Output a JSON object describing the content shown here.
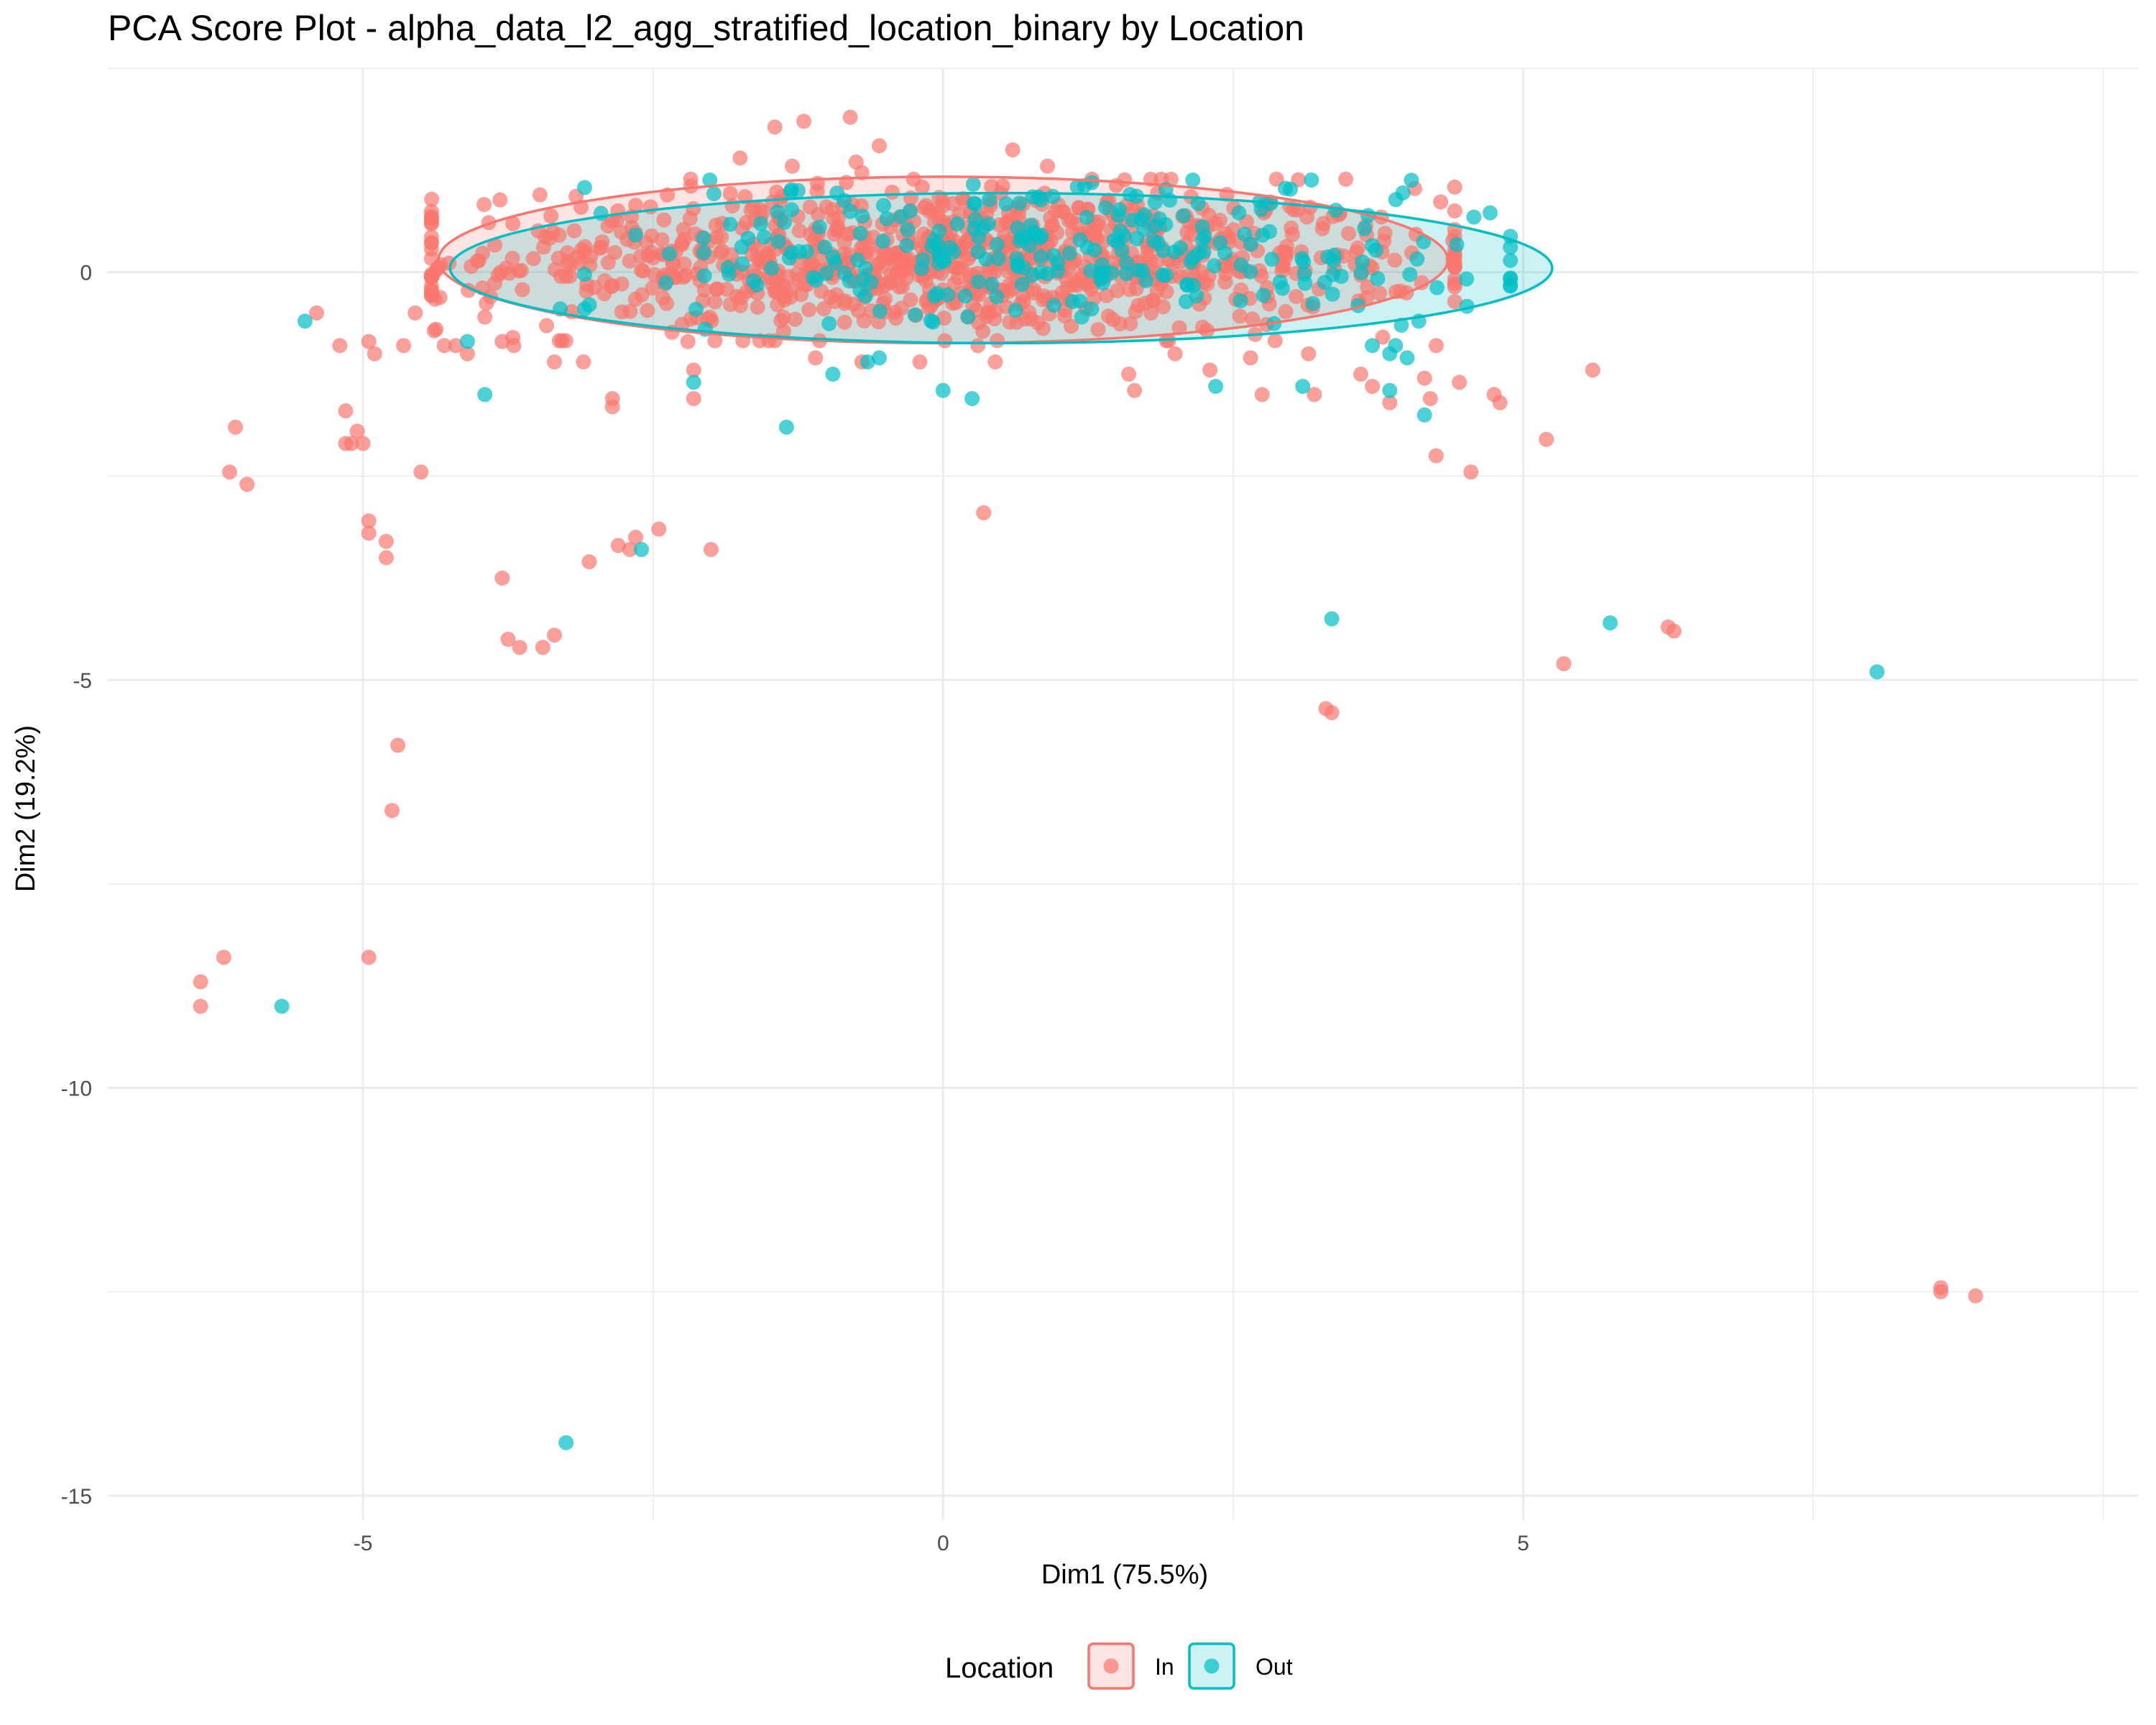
{
  "chart_data": {
    "type": "scatter",
    "title": "PCA Score Plot - alpha_data_l2_agg_stratified_location_binary by Location",
    "xlabel": "Dim1 (75.5%)",
    "ylabel": "Dim2 (19.2%)",
    "xlim": [
      -7.2,
      10.3
    ],
    "ylim": [
      -15.3,
      2.5
    ],
    "x_ticks": [
      -5,
      0,
      5
    ],
    "x_tick_labels": [
      "-5",
      "0",
      "5"
    ],
    "y_ticks": [
      -15,
      -10,
      -5,
      0
    ],
    "y_tick_labels": [
      "-15",
      "-10",
      "-5",
      "0"
    ],
    "grid": true,
    "legend": {
      "title": "Location",
      "position": "bottom",
      "entries": [
        {
          "label": "In",
          "color": "#F8766D"
        },
        {
          "label": "Out",
          "color": "#00BFC4"
        }
      ]
    },
    "series": [
      {
        "name": "In",
        "color": "#F8766D",
        "ellipse": {
          "cx": 0.0,
          "cy": 0.15,
          "rx": 4.35,
          "ry": 1.02
        },
        "cluster": {
          "n": 950,
          "seed": 12345,
          "cx": 0.0,
          "cy": 0.15,
          "sx": 2.1,
          "sy": 0.45
        },
        "points": [
          [
            -6.4,
            -8.7
          ],
          [
            -6.4,
            -9.0
          ],
          [
            -6.2,
            -8.4
          ],
          [
            -6.1,
            -1.9
          ],
          [
            -6.0,
            -2.6
          ],
          [
            -6.15,
            -2.45
          ],
          [
            -5.4,
            -0.5
          ],
          [
            -5.15,
            -1.7
          ],
          [
            -5.15,
            -2.1
          ],
          [
            -5.1,
            -2.1
          ],
          [
            -5.0,
            -2.1
          ],
          [
            -5.05,
            -1.95
          ],
          [
            -4.95,
            -3.05
          ],
          [
            -4.95,
            -3.2
          ],
          [
            -4.8,
            -3.3
          ],
          [
            -4.8,
            -3.5
          ],
          [
            -4.7,
            -5.8
          ],
          [
            -4.75,
            -6.6
          ],
          [
            -4.95,
            -8.4
          ],
          [
            -4.5,
            -2.45
          ],
          [
            -5.2,
            -0.9
          ],
          [
            -4.95,
            -0.85
          ],
          [
            -4.9,
            -1.0
          ],
          [
            -4.65,
            -0.9
          ],
          [
            -4.55,
            -0.5
          ],
          [
            -4.3,
            -0.9
          ],
          [
            -4.2,
            -0.9
          ],
          [
            -4.1,
            -1.0
          ],
          [
            -3.95,
            -0.55
          ],
          [
            -3.9,
            -0.3
          ],
          [
            -3.8,
            -3.75
          ],
          [
            -3.8,
            -0.85
          ],
          [
            -3.7,
            -0.9
          ],
          [
            -3.75,
            -4.5
          ],
          [
            -3.65,
            -4.6
          ],
          [
            -3.45,
            -4.6
          ],
          [
            -3.35,
            -4.45
          ],
          [
            -3.35,
            -1.1
          ],
          [
            -3.1,
            -1.1
          ],
          [
            -3.05,
            -3.55
          ],
          [
            -2.85,
            -1.65
          ],
          [
            -2.85,
            -1.55
          ],
          [
            -2.8,
            -3.35
          ],
          [
            -2.7,
            -3.4
          ],
          [
            -2.65,
            -3.25
          ],
          [
            -2.45,
            -3.15
          ],
          [
            -2.2,
            -0.85
          ],
          [
            -2.15,
            -1.2
          ],
          [
            -2.15,
            -1.55
          ],
          [
            -2.0,
            -3.4
          ],
          [
            -0.7,
            -1.1
          ],
          [
            -1.1,
            -1.05
          ],
          [
            -0.2,
            -1.1
          ],
          [
            0.3,
            -0.9
          ],
          [
            0.45,
            -1.1
          ],
          [
            0.35,
            -2.95
          ],
          [
            1.6,
            -1.25
          ],
          [
            1.65,
            -1.45
          ],
          [
            2.0,
            -1.0
          ],
          [
            2.3,
            -1.2
          ],
          [
            2.65,
            -1.05
          ],
          [
            2.75,
            -1.5
          ],
          [
            3.3,
            -5.35
          ],
          [
            3.35,
            -5.4
          ],
          [
            3.15,
            -1.0
          ],
          [
            3.2,
            -1.5
          ],
          [
            3.6,
            -1.25
          ],
          [
            3.7,
            -1.4
          ],
          [
            3.85,
            -1.6
          ],
          [
            4.25,
            -0.9
          ],
          [
            4.15,
            -1.3
          ],
          [
            4.2,
            -1.55
          ],
          [
            4.25,
            -2.25
          ],
          [
            4.45,
            -1.35
          ],
          [
            4.55,
            -2.45
          ],
          [
            4.75,
            -1.5
          ],
          [
            4.8,
            -1.6
          ],
          [
            5.2,
            -2.05
          ],
          [
            5.6,
            -1.2
          ],
          [
            5.35,
            -4.8
          ],
          [
            6.25,
            -4.35
          ],
          [
            6.3,
            -4.4
          ],
          [
            8.6,
            -12.45
          ],
          [
            8.6,
            -12.5
          ],
          [
            8.9,
            -12.55
          ],
          [
            -1.45,
            1.78
          ],
          [
            -1.2,
            1.85
          ],
          [
            -0.8,
            1.9
          ],
          [
            -0.55,
            1.55
          ],
          [
            -1.3,
            1.3
          ],
          [
            -1.75,
            1.4
          ],
          [
            0.6,
            1.5
          ],
          [
            0.9,
            1.3
          ],
          [
            -0.75,
            1.35
          ],
          [
            -0.7,
            1.22
          ]
        ]
      },
      {
        "name": "Out",
        "color": "#00BFC4",
        "ellipse": {
          "cx": 0.5,
          "cy": 0.05,
          "rx": 4.75,
          "ry": 0.92
        },
        "cluster": {
          "n": 260,
          "seed": 6789,
          "cx": 0.9,
          "cy": 0.25,
          "sx": 1.9,
          "sy": 0.4
        },
        "points": [
          [
            -5.5,
            -0.6
          ],
          [
            -5.7,
            -9.0
          ],
          [
            -4.1,
            -0.85
          ],
          [
            -3.95,
            -1.5
          ],
          [
            -3.25,
            -14.35
          ],
          [
            -2.6,
            -3.4
          ],
          [
            -2.15,
            -1.35
          ],
          [
            -1.35,
            -1.9
          ],
          [
            -0.95,
            -1.25
          ],
          [
            -0.65,
            -1.1
          ],
          [
            -0.55,
            -1.05
          ],
          [
            0.0,
            -1.45
          ],
          [
            0.25,
            -1.55
          ],
          [
            2.35,
            -1.4
          ],
          [
            3.1,
            -1.4
          ],
          [
            3.35,
            -4.25
          ],
          [
            3.85,
            -1.45
          ],
          [
            4.15,
            -1.75
          ],
          [
            5.75,
            -4.3
          ],
          [
            8.05,
            -4.9
          ],
          [
            3.9,
            -0.9
          ],
          [
            4.0,
            -1.05
          ],
          [
            3.7,
            -0.9
          ],
          [
            3.95,
            -0.65
          ],
          [
            4.1,
            -0.6
          ],
          [
            3.85,
            -1.0
          ],
          [
            -2.05,
            -0.7
          ],
          [
            -1.25,
            1.0
          ],
          [
            -3.3,
            -0.45
          ],
          [
            -3.05,
            -0.4
          ]
        ]
      }
    ]
  }
}
